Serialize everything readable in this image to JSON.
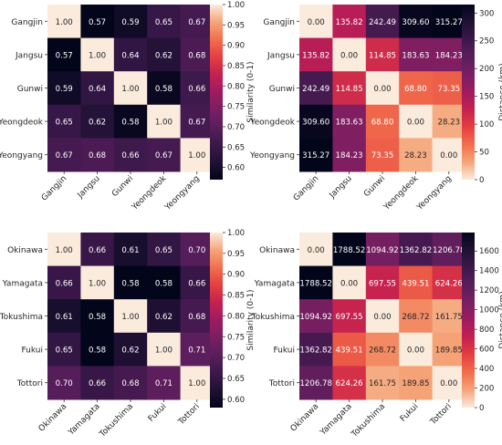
{
  "chart_data": [
    {
      "type": "heatmap",
      "id": "korea-similarity",
      "rows": [
        "Gangjin",
        "Jangsu",
        "Gunwi",
        "Yeongdeok",
        "Yeongyang"
      ],
      "cols": [
        "Gangjin",
        "Jangsu",
        "Gunwi",
        "Yeongdeok",
        "Yeongyang"
      ],
      "values": [
        [
          1.0,
          0.57,
          0.59,
          0.65,
          0.67
        ],
        [
          0.57,
          1.0,
          0.64,
          0.62,
          0.68
        ],
        [
          0.59,
          0.64,
          1.0,
          0.58,
          0.66
        ],
        [
          0.65,
          0.62,
          0.58,
          1.0,
          0.67
        ],
        [
          0.67,
          0.68,
          0.66,
          0.67,
          1.0
        ]
      ],
      "labels": [
        [
          "1.00",
          "0.57",
          "0.59",
          "0.65",
          "0.67"
        ],
        [
          "0.57",
          "1.00",
          "0.64",
          "0.62",
          "0.68"
        ],
        [
          "0.59",
          "0.64",
          "1.00",
          "0.58",
          "0.66"
        ],
        [
          "0.65",
          "0.62",
          "0.58",
          "1.00",
          "0.67"
        ],
        [
          "0.67",
          "0.68",
          "0.66",
          "0.67",
          "1.00"
        ]
      ],
      "colorbar_label": "Similarity (0-1)",
      "vmin": 0.57,
      "vmax": 1.0,
      "colormap": "rocket",
      "colorbar_ticks": [
        0.6,
        0.65,
        0.7,
        0.75,
        0.8,
        0.85,
        0.9,
        0.95,
        1.0
      ],
      "colorbar_tick_labels": [
        "0.60",
        "0.65",
        "0.70",
        "0.75",
        "0.80",
        "0.85",
        "0.90",
        "0.95",
        "1.00"
      ]
    },
    {
      "type": "heatmap",
      "id": "korea-distance",
      "rows": [
        "Gangjin",
        "Jangsu",
        "Gunwi",
        "Yeongdeok",
        "Yeongyang"
      ],
      "cols": [
        "Gangjin",
        "Jangsu",
        "Gunwi",
        "Yeongdeok",
        "Yeongyang"
      ],
      "values": [
        [
          0.0,
          135.82,
          242.49,
          309.6,
          315.27
        ],
        [
          135.82,
          0.0,
          114.85,
          183.63,
          184.23
        ],
        [
          242.49,
          114.85,
          0.0,
          68.8,
          73.35
        ],
        [
          309.6,
          183.63,
          68.8,
          0.0,
          28.23
        ],
        [
          315.27,
          184.23,
          73.35,
          28.23,
          0.0
        ]
      ],
      "labels": [
        [
          "0.00",
          "135.82",
          "242.49",
          "309.60",
          "315.27"
        ],
        [
          "135.82",
          "0.00",
          "114.85",
          "183.63",
          "184.23"
        ],
        [
          "242.49",
          "114.85",
          "0.00",
          "68.80",
          "73.35"
        ],
        [
          "309.60",
          "183.63",
          "68.80",
          "0.00",
          "28.23"
        ],
        [
          "315.27",
          "184.23",
          "73.35",
          "28.23",
          "0.00"
        ]
      ],
      "colorbar_label": "Distance (km)",
      "vmin": 0,
      "vmax": 315.27,
      "colormap": "rocket_r",
      "colorbar_ticks": [
        0,
        50,
        100,
        150,
        200,
        250,
        300
      ],
      "colorbar_tick_labels": [
        "0",
        "50",
        "100",
        "150",
        "200",
        "250",
        "300"
      ]
    },
    {
      "type": "heatmap",
      "id": "japan-similarity",
      "rows": [
        "Okinawa",
        "Yamagata",
        "Tokushima",
        "Fukui",
        "Tottori"
      ],
      "cols": [
        "Okinawa",
        "Yamagata",
        "Tokushima",
        "Fukui",
        "Tottori"
      ],
      "values": [
        [
          1.0,
          0.66,
          0.61,
          0.65,
          0.7
        ],
        [
          0.66,
          1.0,
          0.58,
          0.58,
          0.66
        ],
        [
          0.61,
          0.58,
          1.0,
          0.62,
          0.68
        ],
        [
          0.65,
          0.58,
          0.62,
          1.0,
          0.71
        ],
        [
          0.7,
          0.66,
          0.68,
          0.71,
          1.0
        ]
      ],
      "labels": [
        [
          "1.00",
          "0.66",
          "0.61",
          "0.65",
          "0.70"
        ],
        [
          "0.66",
          "1.00",
          "0.58",
          "0.58",
          "0.66"
        ],
        [
          "0.61",
          "0.58",
          "1.00",
          "0.62",
          "0.68"
        ],
        [
          "0.65",
          "0.58",
          "0.62",
          "1.00",
          "0.71"
        ],
        [
          "0.70",
          "0.66",
          "0.68",
          "0.71",
          "1.00"
        ]
      ],
      "colorbar_label": "Similarity (0-1)",
      "vmin": 0.58,
      "vmax": 1.0,
      "colormap": "rocket",
      "colorbar_ticks": [
        0.6,
        0.65,
        0.7,
        0.75,
        0.8,
        0.85,
        0.9,
        0.95,
        1.0
      ],
      "colorbar_tick_labels": [
        "0.60",
        "0.65",
        "0.70",
        "0.75",
        "0.80",
        "0.85",
        "0.90",
        "0.95",
        "1.00"
      ]
    },
    {
      "type": "heatmap",
      "id": "japan-distance",
      "rows": [
        "Okinawa",
        "Yamagata",
        "Tokushima",
        "Fukui",
        "Tottori"
      ],
      "cols": [
        "Okinawa",
        "Yamagata",
        "Tokushima",
        "Fukui",
        "Tottori"
      ],
      "values": [
        [
          0.0,
          1788.52,
          1094.92,
          1362.82,
          1206.78
        ],
        [
          1788.52,
          0.0,
          697.55,
          439.51,
          624.26
        ],
        [
          1094.92,
          697.55,
          0.0,
          268.72,
          161.75
        ],
        [
          1362.82,
          439.51,
          268.72,
          0.0,
          189.85
        ],
        [
          1206.78,
          624.26,
          161.75,
          189.85,
          0.0
        ]
      ],
      "labels": [
        [
          "0.00",
          "1788.52",
          "1094.92",
          "1362.82",
          "1206.78"
        ],
        [
          "1788.52",
          "0.00",
          "697.55",
          "439.51",
          "624.26"
        ],
        [
          "1094.92",
          "697.55",
          "0.00",
          "268.72",
          "161.75"
        ],
        [
          "1362.82",
          "439.51",
          "268.72",
          "0.00",
          "189.85"
        ],
        [
          "1206.78",
          "624.26",
          "161.75",
          "189.85",
          "0.00"
        ]
      ],
      "colorbar_label": "Distance (km)",
      "vmin": 0,
      "vmax": 1788.52,
      "colormap": "rocket_r",
      "colorbar_ticks": [
        0,
        200,
        400,
        600,
        800,
        1000,
        1200,
        1400,
        1600
      ],
      "colorbar_tick_labels": [
        "0",
        "200",
        "400",
        "600",
        "800",
        "1000",
        "1200",
        "1400",
        "1600"
      ]
    }
  ]
}
